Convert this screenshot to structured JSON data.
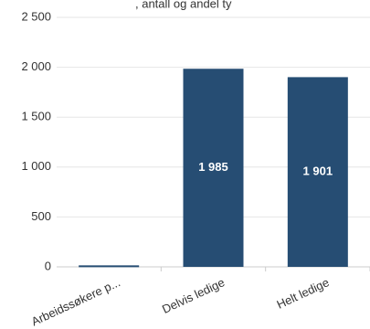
{
  "chart_data": {
    "type": "bar",
    "title_fragment": ", antall og andel ty",
    "categories": [
      "Arbeidssøkere p...",
      "Delvis ledige",
      "Helt ledige"
    ],
    "values": [
      15,
      1985,
      1901
    ],
    "data_labels": [
      "",
      "1 985",
      "1 901"
    ],
    "y_ticks": [
      0,
      500,
      1000,
      1500,
      2000,
      2500
    ],
    "y_tick_labels": [
      "0",
      "500",
      "1 000",
      "1 500",
      "2 000",
      "2 500"
    ],
    "ylim": [
      0,
      2500
    ],
    "grid": true,
    "colors": {
      "bar": "#264d73",
      "grid": "#e6e6e6",
      "axis": "#cccccc"
    }
  }
}
